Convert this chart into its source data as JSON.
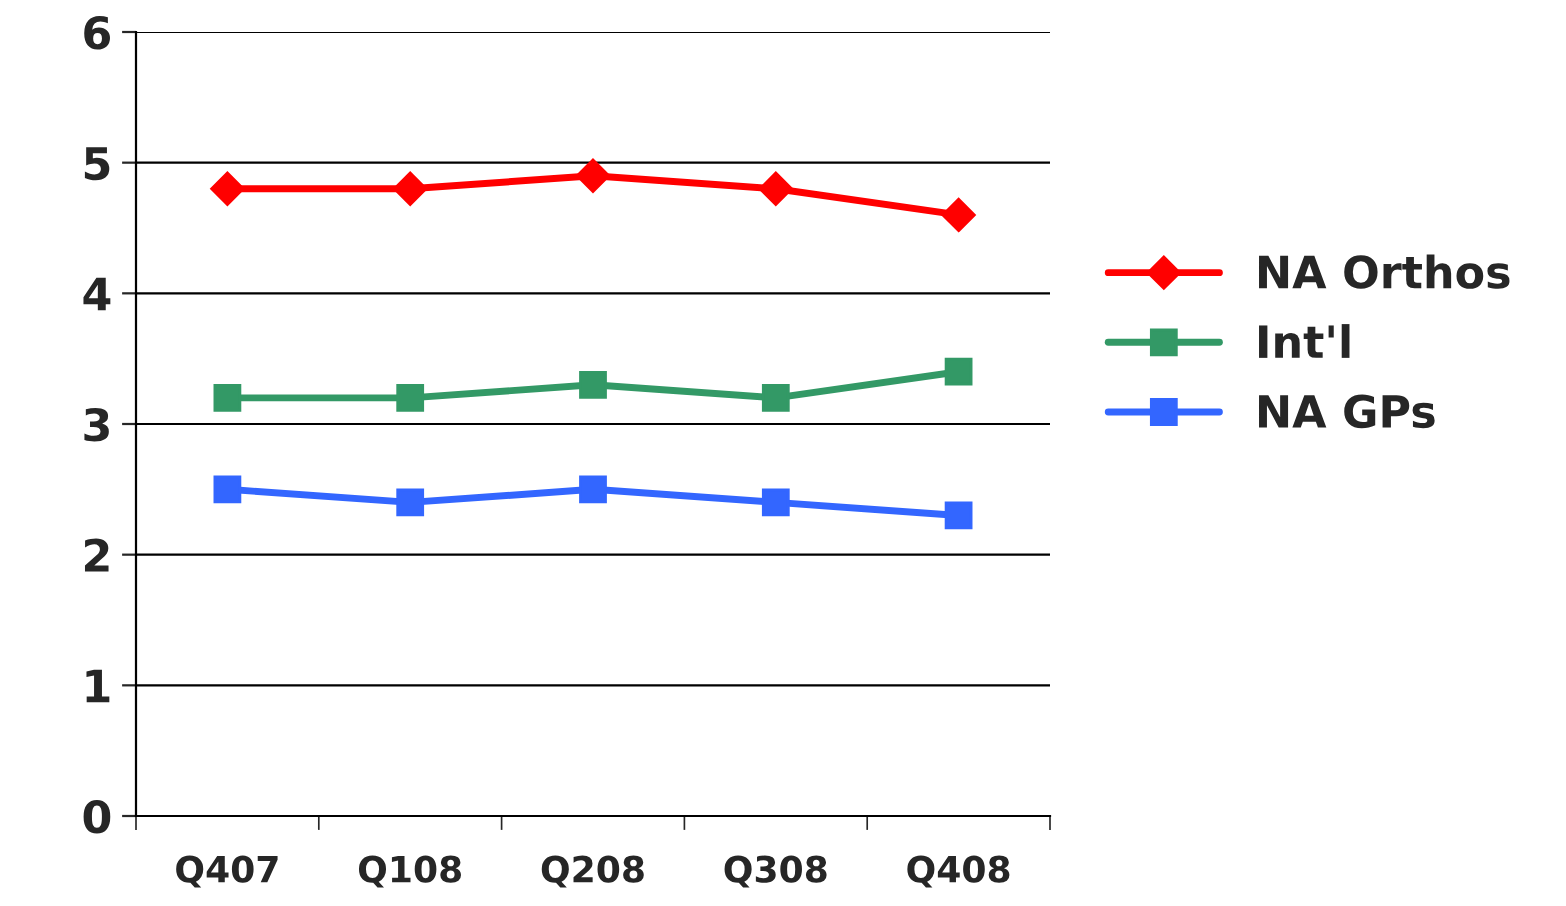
{
  "chart_data": {
    "type": "line",
    "categories": [
      "Q407",
      "Q108",
      "Q208",
      "Q308",
      "Q408"
    ],
    "series": [
      {
        "name": "NA Orthos",
        "color": "#ff0000",
        "values": [
          4.8,
          4.8,
          4.9,
          4.8,
          4.6
        ],
        "marker": "diamond"
      },
      {
        "name": "Int'l",
        "color": "#339966",
        "values": [
          3.2,
          3.2,
          3.3,
          3.2,
          3.4
        ],
        "marker": "square"
      },
      {
        "name": "NA GPs",
        "color": "#3366ff",
        "values": [
          2.5,
          2.4,
          2.5,
          2.4,
          2.3
        ],
        "marker": "square"
      }
    ],
    "ylim": [
      0,
      6
    ],
    "yticks": [
      0,
      1,
      2,
      3,
      4,
      5,
      6
    ],
    "grid": "y",
    "legend": "right",
    "line_style": "solid"
  }
}
